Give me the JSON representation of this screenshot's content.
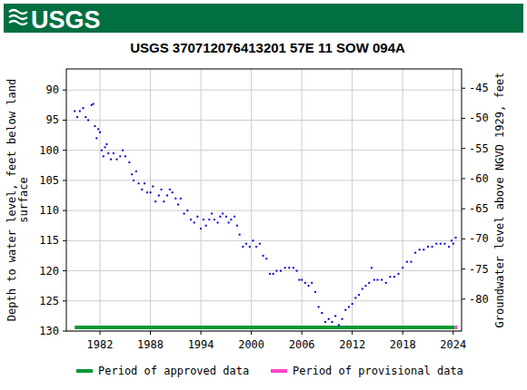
{
  "chart_data": {
    "type": "scatter",
    "logo": "USGS",
    "title": "USGS 370712076413201 57E 11 SOW 094A",
    "ylabel": [
      "Depth to water level, feet below land",
      "surface"
    ],
    "y2label": "Groundwater level above NGVD 1929, feet",
    "xlim": [
      1978,
      2025
    ],
    "xticks": [
      1982,
      1988,
      1994,
      2000,
      2006,
      2012,
      2018,
      2024
    ],
    "ylim": [
      130,
      86.5
    ],
    "yticks": [
      90,
      95,
      100,
      105,
      110,
      115,
      120,
      125,
      130
    ],
    "y2lim": [
      -85.3,
      -41.8
    ],
    "y2ticks": [
      -45,
      -50,
      -55,
      -60,
      -65,
      -70,
      -75,
      -80
    ],
    "grid": true,
    "legend": "bottom",
    "series": [
      {
        "name": "Period of approved data",
        "color": "#009933",
        "type": "line",
        "line_style": "solid",
        "x": [
          1979,
          2024.2
        ],
        "values": [
          129.4,
          129.4
        ]
      },
      {
        "name": "Period of provisional data",
        "color": "#ff44cc",
        "type": "line",
        "line_style": "solid",
        "x": [
          2024.2,
          2024.5
        ],
        "values": [
          129.4,
          129.4
        ]
      },
      {
        "color": "#0000cc",
        "type": "scatter",
        "marker": "dot",
        "x": [
          1979.0,
          1979.3,
          1979.6,
          1980.0,
          1980.3,
          1980.6,
          1981.0,
          1981.2,
          1981.4,
          1981.6,
          1981.8,
          1982.0,
          1982.2,
          1982.4,
          1982.6,
          1982.8,
          1983.0,
          1983.3,
          1983.6,
          1984.0,
          1984.4,
          1984.7,
          1985.0,
          1985.5,
          1985.8,
          1986.0,
          1986.3,
          1986.6,
          1987.0,
          1987.3,
          1987.6,
          1988.0,
          1988.3,
          1988.6,
          1989.0,
          1989.3,
          1989.6,
          1990.0,
          1990.3,
          1990.6,
          1991.0,
          1991.3,
          1991.6,
          1992.0,
          1992.4,
          1992.8,
          1993.2,
          1993.6,
          1994.0,
          1994.3,
          1994.6,
          1995.0,
          1995.3,
          1995.6,
          1996.0,
          1996.3,
          1996.6,
          1997.0,
          1997.3,
          1997.6,
          1998.0,
          1998.3,
          1998.6,
          1999.0,
          1999.4,
          1999.8,
          2000.2,
          2000.6,
          2001.0,
          2001.4,
          2001.8,
          2002.2,
          2002.6,
          2003.0,
          2003.5,
          2004.0,
          2004.5,
          2005.0,
          2005.4,
          2005.7,
          2006.0,
          2006.4,
          2006.8,
          2007.2,
          2007.6,
          2008.0,
          2008.4,
          2008.8,
          2009.2,
          2009.6,
          2010.0,
          2010.4,
          2010.8,
          2011.2,
          2011.6,
          2012.0,
          2012.4,
          2012.8,
          2013.2,
          2013.6,
          2014.0,
          2014.3,
          2014.6,
          2015.0,
          2015.5,
          2016.0,
          2016.5,
          2017.0,
          2017.5,
          2018.0,
          2018.5,
          2019.0,
          2019.5,
          2020.0,
          2020.5,
          2021.0,
          2021.5,
          2022.0,
          2022.5,
          2023.0,
          2023.5,
          2023.8,
          2024.0,
          2024.3
        ],
        "values": [
          93.5,
          94.5,
          93.5,
          93,
          94.5,
          95,
          92.5,
          92.3,
          96,
          98,
          96.5,
          97,
          100,
          101,
          99.5,
          99,
          100.5,
          101.5,
          100.5,
          101.5,
          101,
          100,
          101,
          102,
          104,
          105,
          103.5,
          105.5,
          106.5,
          105.5,
          107,
          107,
          106,
          108.5,
          107.5,
          106.5,
          108.5,
          107.5,
          106.5,
          107,
          108,
          109,
          108,
          110.5,
          110,
          111.5,
          112,
          111,
          113,
          111.5,
          112.5,
          111.5,
          110.5,
          111.5,
          112,
          111,
          110.5,
          111,
          112,
          111.5,
          111,
          112.5,
          114,
          116,
          115.5,
          116,
          115,
          116,
          115.5,
          117.5,
          118,
          120.5,
          120.5,
          120,
          120,
          119.5,
          119.5,
          119.5,
          120,
          121.5,
          121.5,
          122,
          122.5,
          122,
          123.5,
          126,
          127,
          128.5,
          128,
          128.5,
          127.5,
          129,
          128,
          126.5,
          126,
          125.5,
          124.5,
          124,
          123,
          122.5,
          122,
          119.5,
          121.5,
          121.5,
          121.5,
          122,
          121,
          121,
          120.5,
          119.5,
          118.5,
          118.5,
          117,
          116.5,
          116.5,
          116,
          116,
          115.5,
          115.5,
          115.5,
          116,
          115,
          115.5,
          114.5
        ]
      }
    ]
  }
}
